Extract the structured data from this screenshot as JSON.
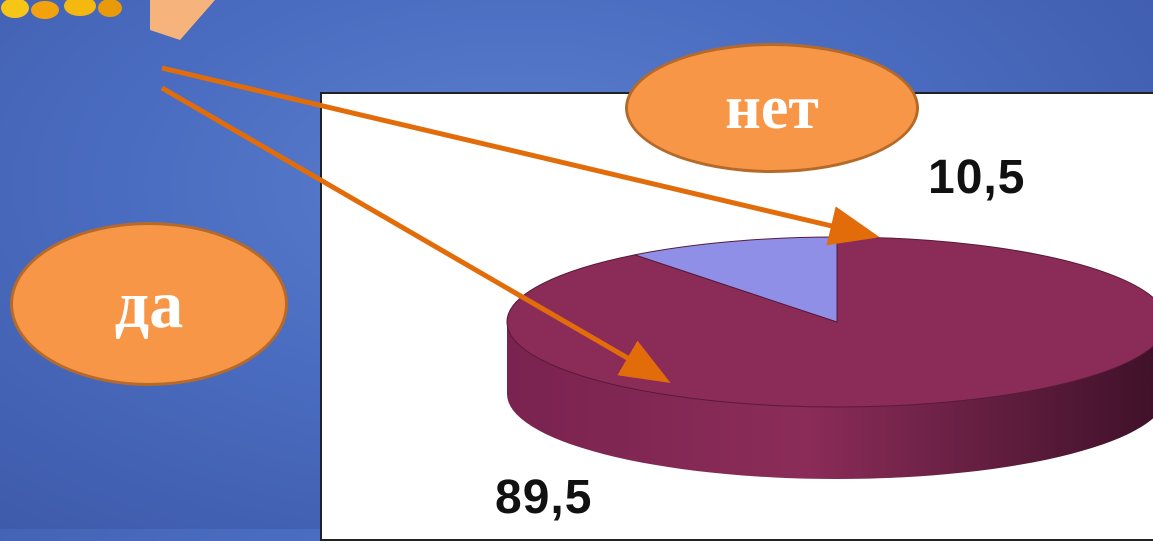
{
  "chart_data": {
    "type": "pie",
    "categories": [
      "да",
      "нет"
    ],
    "values": [
      89.5,
      10.5
    ],
    "data_labels": [
      "89,5",
      "10,5"
    ],
    "colors": [
      "#8b2c58",
      "#8f8fe8"
    ]
  },
  "callouts": {
    "yes_label": "да",
    "no_label": "нет"
  },
  "arrow_color": "#e36c0a",
  "decoration": "orange-tab-top-left"
}
